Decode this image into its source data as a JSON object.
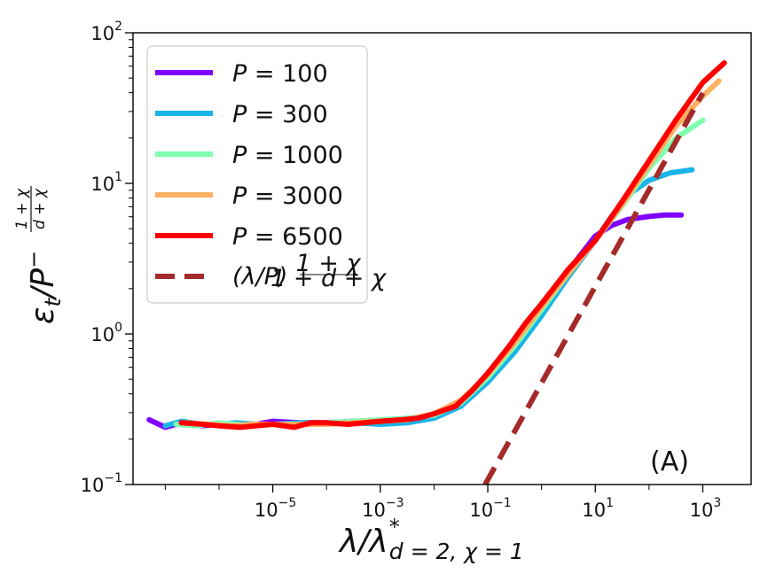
{
  "chart_data": {
    "type": "line",
    "xscale": "log",
    "yscale": "log",
    "xlim_log10": [
      -7.6,
      3.9
    ],
    "ylim_log10": [
      -1,
      2
    ],
    "x_ticks": [
      {
        "base": "10",
        "exp": "−5",
        "log": -5
      },
      {
        "base": "10",
        "exp": "−3",
        "log": -3
      },
      {
        "base": "10",
        "exp": "−1",
        "log": -1
      },
      {
        "base": "10",
        "exp": "1",
        "log": 1
      },
      {
        "base": "10",
        "exp": "3",
        "log": 3
      }
    ],
    "y_ticks": [
      {
        "base": "10",
        "exp": "−1",
        "log": -1
      },
      {
        "base": "10",
        "exp": "0",
        "log": 0
      },
      {
        "base": "10",
        "exp": "1",
        "log": 1
      },
      {
        "base": "10",
        "exp": "2",
        "log": 2
      }
    ],
    "xlabel": {
      "main": "λ/λ",
      "sup": "*",
      "sub": "d = 2, χ = 1"
    },
    "ylabel": {
      "main": "ε",
      "sub": "t",
      "mid": "/P",
      "exp": "−",
      "num": "1 + χ",
      "den": "d + χ"
    },
    "annotation": "(A)",
    "series": [
      {
        "name": "P = 100",
        "label_var": "P",
        "label_val": "100",
        "color": "#7f00ff",
        "dashed": false,
        "x_log10": [
          -7.3,
          -7.0,
          -6.7,
          -6.3,
          -6.0,
          -5.7,
          -5.3,
          -5.0,
          -4.5,
          -4.0,
          -3.5,
          -3.0,
          -2.5,
          -2.0,
          -1.5,
          -1.0,
          -0.5,
          0.0,
          0.5,
          1.0,
          1.3,
          1.6,
          2.0,
          2.3,
          2.6
        ],
        "y_log10": [
          -0.57,
          -0.62,
          -0.59,
          -0.61,
          -0.6,
          -0.6,
          -0.6,
          -0.58,
          -0.59,
          -0.59,
          -0.58,
          -0.58,
          -0.58,
          -0.55,
          -0.46,
          -0.3,
          -0.1,
          0.15,
          0.42,
          0.65,
          0.72,
          0.76,
          0.78,
          0.79,
          0.79
        ]
      },
      {
        "name": "P = 300",
        "label_var": "P",
        "label_val": "300",
        "color": "#1ab4e8",
        "dashed": false,
        "x_log10": [
          -7.0,
          -6.7,
          -6.3,
          -6.0,
          -5.7,
          -5.3,
          -5.0,
          -4.5,
          -4.0,
          -3.5,
          -3.0,
          -2.5,
          -2.0,
          -1.5,
          -1.0,
          -0.5,
          0.0,
          0.5,
          1.0,
          1.3,
          1.6,
          2.0,
          2.4,
          2.8
        ],
        "y_log10": [
          -0.61,
          -0.58,
          -0.6,
          -0.6,
          -0.59,
          -0.6,
          -0.6,
          -0.59,
          -0.59,
          -0.59,
          -0.6,
          -0.59,
          -0.56,
          -0.48,
          -0.32,
          -0.12,
          0.12,
          0.38,
          0.62,
          0.78,
          0.92,
          1.02,
          1.07,
          1.09
        ]
      },
      {
        "name": "P = 1000",
        "label_var": "P",
        "label_val": "1000",
        "color": "#7fffb0",
        "dashed": false,
        "x_log10": [
          -6.8,
          -6.4,
          -6.0,
          -5.7,
          -5.3,
          -5.0,
          -4.5,
          -4.0,
          -3.5,
          -3.0,
          -2.5,
          -2.0,
          -1.5,
          -1.0,
          -0.5,
          0.0,
          0.5,
          1.0,
          1.5,
          2.0,
          2.5,
          3.0
        ],
        "y_log10": [
          -0.6,
          -0.61,
          -0.59,
          -0.6,
          -0.61,
          -0.6,
          -0.6,
          -0.59,
          -0.58,
          -0.57,
          -0.56,
          -0.54,
          -0.46,
          -0.29,
          -0.08,
          0.16,
          0.4,
          0.62,
          0.85,
          1.1,
          1.3,
          1.42
        ]
      },
      {
        "name": "P = 3000",
        "label_var": "P",
        "label_val": "3000",
        "color": "#ffb060",
        "dashed": false,
        "x_log10": [
          -6.6,
          -6.2,
          -5.8,
          -5.4,
          -5.0,
          -4.5,
          -4.0,
          -3.5,
          -3.0,
          -2.5,
          -2.0,
          -1.5,
          -1.0,
          -0.5,
          0.0,
          0.5,
          1.0,
          1.5,
          2.0,
          2.5,
          3.0,
          3.3
        ],
        "y_log10": [
          -0.59,
          -0.6,
          -0.61,
          -0.6,
          -0.6,
          -0.6,
          -0.6,
          -0.59,
          -0.58,
          -0.57,
          -0.53,
          -0.44,
          -0.27,
          -0.06,
          0.18,
          0.4,
          0.62,
          0.86,
          1.12,
          1.38,
          1.58,
          1.68
        ]
      },
      {
        "name": "P = 6500",
        "label_var": "P",
        "label_val": "6500",
        "color": "#ff0000",
        "dashed": false,
        "x_log10": [
          -6.7,
          -6.3,
          -6.0,
          -5.6,
          -5.3,
          -5.0,
          -4.6,
          -4.3,
          -4.0,
          -3.6,
          -3.3,
          -3.0,
          -2.6,
          -2.3,
          -2.0,
          -1.6,
          -1.3,
          -1.0,
          -0.6,
          -0.3,
          0.0,
          0.5,
          1.0,
          1.5,
          2.0,
          2.5,
          3.0,
          3.4
        ],
        "y_log10": [
          -0.59,
          -0.6,
          -0.61,
          -0.62,
          -0.61,
          -0.6,
          -0.62,
          -0.59,
          -0.59,
          -0.6,
          -0.59,
          -0.58,
          -0.57,
          -0.56,
          -0.53,
          -0.48,
          -0.38,
          -0.26,
          -0.08,
          0.07,
          0.2,
          0.43,
          0.62,
          0.88,
          1.15,
          1.42,
          1.67,
          1.8
        ]
      },
      {
        "name": "(λ/P)^((1+χ)/(1+d+χ))",
        "label_var": "(λ/P)",
        "label_frac_num": "1 + χ",
        "label_frac_den": "1 + d + χ",
        "color": "#a52a2a",
        "dashed": true,
        "x_log10": [
          -1.05,
          3.0
        ],
        "y_log10": [
          -1.0,
          1.6
        ]
      }
    ]
  }
}
